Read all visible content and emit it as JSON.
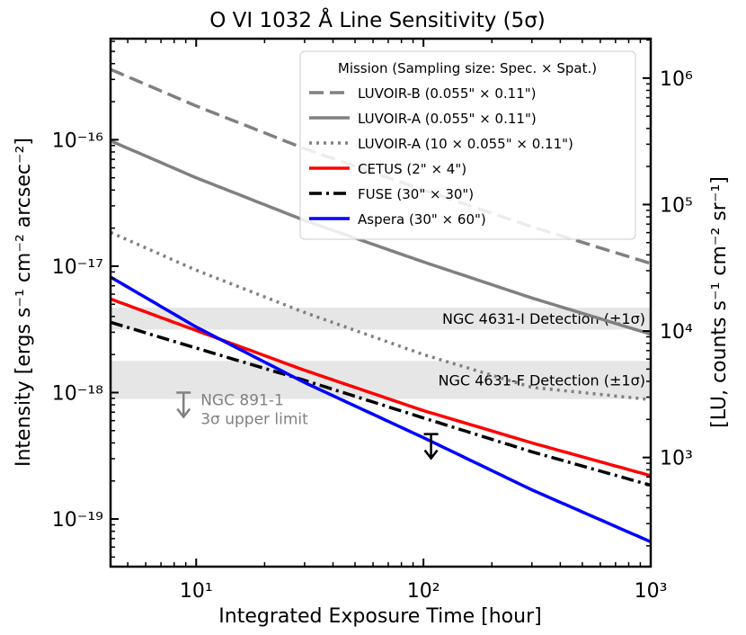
{
  "chart_data": {
    "type": "line",
    "title": "O VI 1032 Å Line Sensitivity (5σ)",
    "xlabel": "Integrated Exposure Time [hour]",
    "ylabel": "Intensity [ergs s⁻¹ cm⁻² arcsec⁻²]",
    "ylabel_right": "[LU, counts s⁻¹ cm⁻² sr⁻¹]",
    "x_scale": "log",
    "y_scale": "log",
    "xlim": [
      4.2,
      1000
    ],
    "ylim": [
      4.2e-20,
      6.3e-16
    ],
    "ylim_right": [
      137,
      2050000
    ],
    "x_ticks": [
      {
        "value": 10,
        "label": "10¹"
      },
      {
        "value": 100,
        "label": "10²"
      },
      {
        "value": 1000,
        "label": "10³"
      }
    ],
    "y_ticks": [
      {
        "value": 1e-16,
        "label": "10⁻¹⁶"
      },
      {
        "value": 1e-17,
        "label": "10⁻¹⁷"
      },
      {
        "value": 1e-18,
        "label": "10⁻¹⁸"
      },
      {
        "value": 1e-19,
        "label": "10⁻¹⁹"
      }
    ],
    "y_ticks_right": [
      {
        "value": 1000000,
        "label": "10⁶"
      },
      {
        "value": 100000,
        "label": "10⁵"
      },
      {
        "value": 10000,
        "label": "10⁴"
      },
      {
        "value": 1000,
        "label": "10³"
      }
    ],
    "legend": {
      "title": "Mission (Sampling size: Spec. × Spat.)",
      "position": "upper-right"
    },
    "series": [
      {
        "name": "LUVOIR-B (0.055\" × 0.11\")",
        "color": "#808080",
        "dash": "dashed",
        "x": [
          4.2,
          10,
          30,
          100,
          300,
          1000
        ],
        "y": [
          3.6e-16,
          1.85e-16,
          8.5e-17,
          4e-17,
          2.05e-17,
          1.05e-17
        ]
      },
      {
        "name": "LUVOIR-A (0.055\" × 0.11\")",
        "color": "#808080",
        "dash": "solid",
        "x": [
          4.2,
          10,
          30,
          100,
          300,
          1000
        ],
        "y": [
          9.8e-17,
          5e-17,
          2.3e-17,
          1.08e-17,
          5.6e-18,
          2.9e-18
        ]
      },
      {
        "name": "LUVOIR-A (10 × 0.055\" × 0.11\")",
        "color": "#808080",
        "dash": "dotted",
        "x": [
          4.2,
          10,
          30,
          100,
          300,
          1000
        ],
        "y": [
          1.85e-17,
          9.3e-18,
          4.3e-18,
          2e-18,
          1.1e-18,
          8.8e-19
        ]
      },
      {
        "name": "CETUS (2\" × 4\")",
        "color": "#ff0000",
        "dash": "solid",
        "x": [
          4.2,
          10,
          30,
          100,
          300,
          1000
        ],
        "y": [
          5.5e-18,
          3.1e-18,
          1.5e-18,
          7.2e-19,
          4e-19,
          2.2e-19
        ]
      },
      {
        "name": "FUSE (30\" × 30\")",
        "color": "#000000",
        "dash": "dashdot",
        "x": [
          4.2,
          10,
          30,
          100,
          300,
          1000
        ],
        "y": [
          3.6e-18,
          2.25e-18,
          1.25e-18,
          6.3e-19,
          3.4e-19,
          1.85e-19
        ]
      },
      {
        "name": "Aspera (30\" × 60\")",
        "color": "#0000ff",
        "dash": "solid",
        "x": [
          4.2,
          10,
          30,
          100,
          300,
          1000
        ],
        "y": [
          8.2e-18,
          3.3e-18,
          1.2e-18,
          4.4e-19,
          1.7e-19,
          6.6e-20
        ]
      }
    ],
    "bands": [
      {
        "label": "NGC 4631-I Detection (±1σ)",
        "y_low": 3.15e-18,
        "y_high": 4.7e-18,
        "color": "#e6e6e6"
      },
      {
        "label": "NGC 4631-F Detection (±1σ)",
        "y_low": 8.9e-19,
        "y_high": 1.78e-18,
        "color": "#e6e6e6"
      }
    ],
    "annotations": [
      {
        "label": "NGC 891-1",
        "label2": "3σ upper limit",
        "x": 8.8,
        "y": 1e-18,
        "color": "#808080",
        "marker": "upper-limit-arrow"
      },
      {
        "x": 108,
        "y": 4.7e-19,
        "color": "#000000",
        "marker": "upper-limit-arrow"
      }
    ],
    "grid": false
  }
}
